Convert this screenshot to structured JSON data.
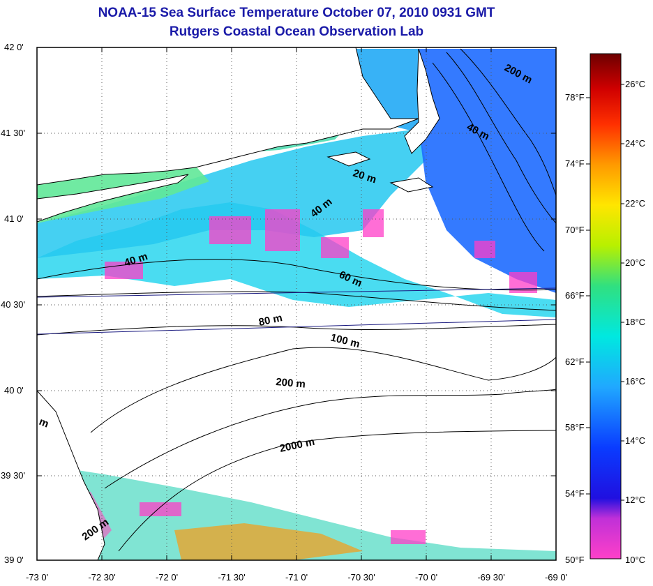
{
  "title": {
    "line1": "NOAA-15 Sea Surface Temperature October 07, 2010 0931 GMT",
    "line2": "Rutgers Coastal Ocean Observation Lab"
  },
  "axes": {
    "lat_labels": [
      "42 0'",
      "41 30'",
      "41 0'",
      "40 30'",
      "40 0'",
      "39 30'",
      "39 0'"
    ],
    "lon_labels": [
      "-73 0'",
      "-72 30'",
      "-72 0'",
      "-71 30'",
      "-71 0'",
      "-70 30'",
      "-70 0'",
      "-69 30'",
      "-69 0'"
    ]
  },
  "depth_labels": [
    "200 m",
    "40 m",
    "20 m",
    "40 m",
    "40 m",
    "60 m",
    "80 m",
    "100 m",
    "200 m",
    "2000 m",
    "m",
    "200 m"
  ],
  "colorbar": {
    "celsius": [
      "26°C",
      "24°C",
      "22°C",
      "20°C",
      "18°C",
      "16°C",
      "14°C",
      "12°C",
      "10°C"
    ],
    "fahrenheit": [
      "78°F",
      "74°F",
      "70°F",
      "66°F",
      "62°F",
      "58°F",
      "54°F",
      "50°F"
    ],
    "colors": [
      "#7a0000",
      "#e00000",
      "#ff6a00",
      "#ffd400",
      "#b8f000",
      "#30e080",
      "#00e8e0",
      "#20a8ff",
      "#0a3cff",
      "#0010d8",
      "#7a2ad0",
      "#ff40c8"
    ]
  }
}
